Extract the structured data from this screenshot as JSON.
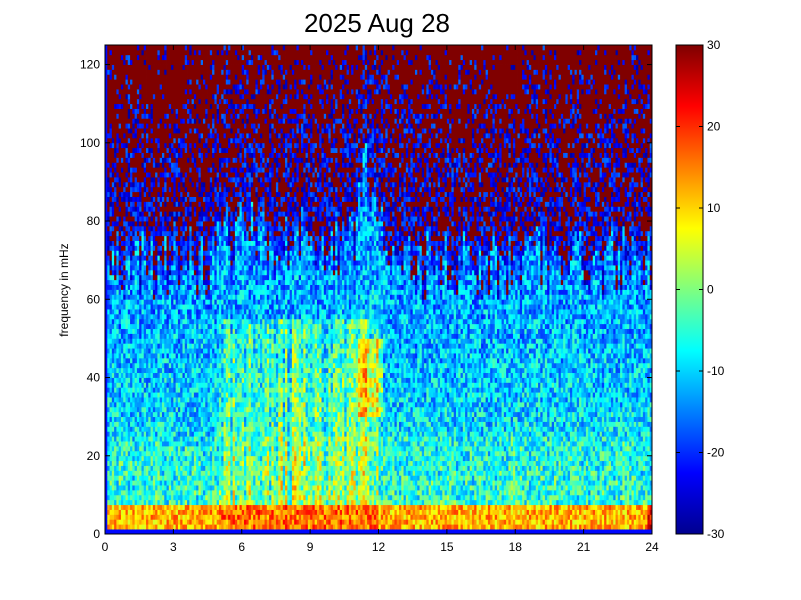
{
  "chart_data": {
    "type": "heatmap",
    "title": "2025 Aug 28",
    "xlabel": "",
    "ylabel": "frequency in mHz",
    "xlim": [
      0,
      24
    ],
    "ylim": [
      0,
      125
    ],
    "x_ticks": [
      "0",
      "3",
      "6",
      "9",
      "12",
      "15",
      "18",
      "21",
      "24"
    ],
    "y_ticks": [
      "0",
      "20",
      "40",
      "60",
      "80",
      "100",
      "120"
    ],
    "colorbar": {
      "range": [
        -30,
        30
      ],
      "ticks": [
        "-30",
        "-20",
        "-10",
        "0",
        "10",
        "20",
        "30"
      ],
      "colormap": "jet"
    },
    "grid": false,
    "description_of_field": {
      "x_resolution_hours": 0.1,
      "y_resolution_mhz": 1.25,
      "low_band_mhz": [
        0,
        8
      ],
      "low_band_level": 12,
      "broadband_onset_hours": 4.8,
      "broadband_peak_band_mhz": [
        25,
        55
      ],
      "enhanced_hours": [
        5,
        12
      ],
      "background_level_above_cutoff": 30,
      "cutoff_mhz": [
        60,
        80
      ]
    }
  }
}
